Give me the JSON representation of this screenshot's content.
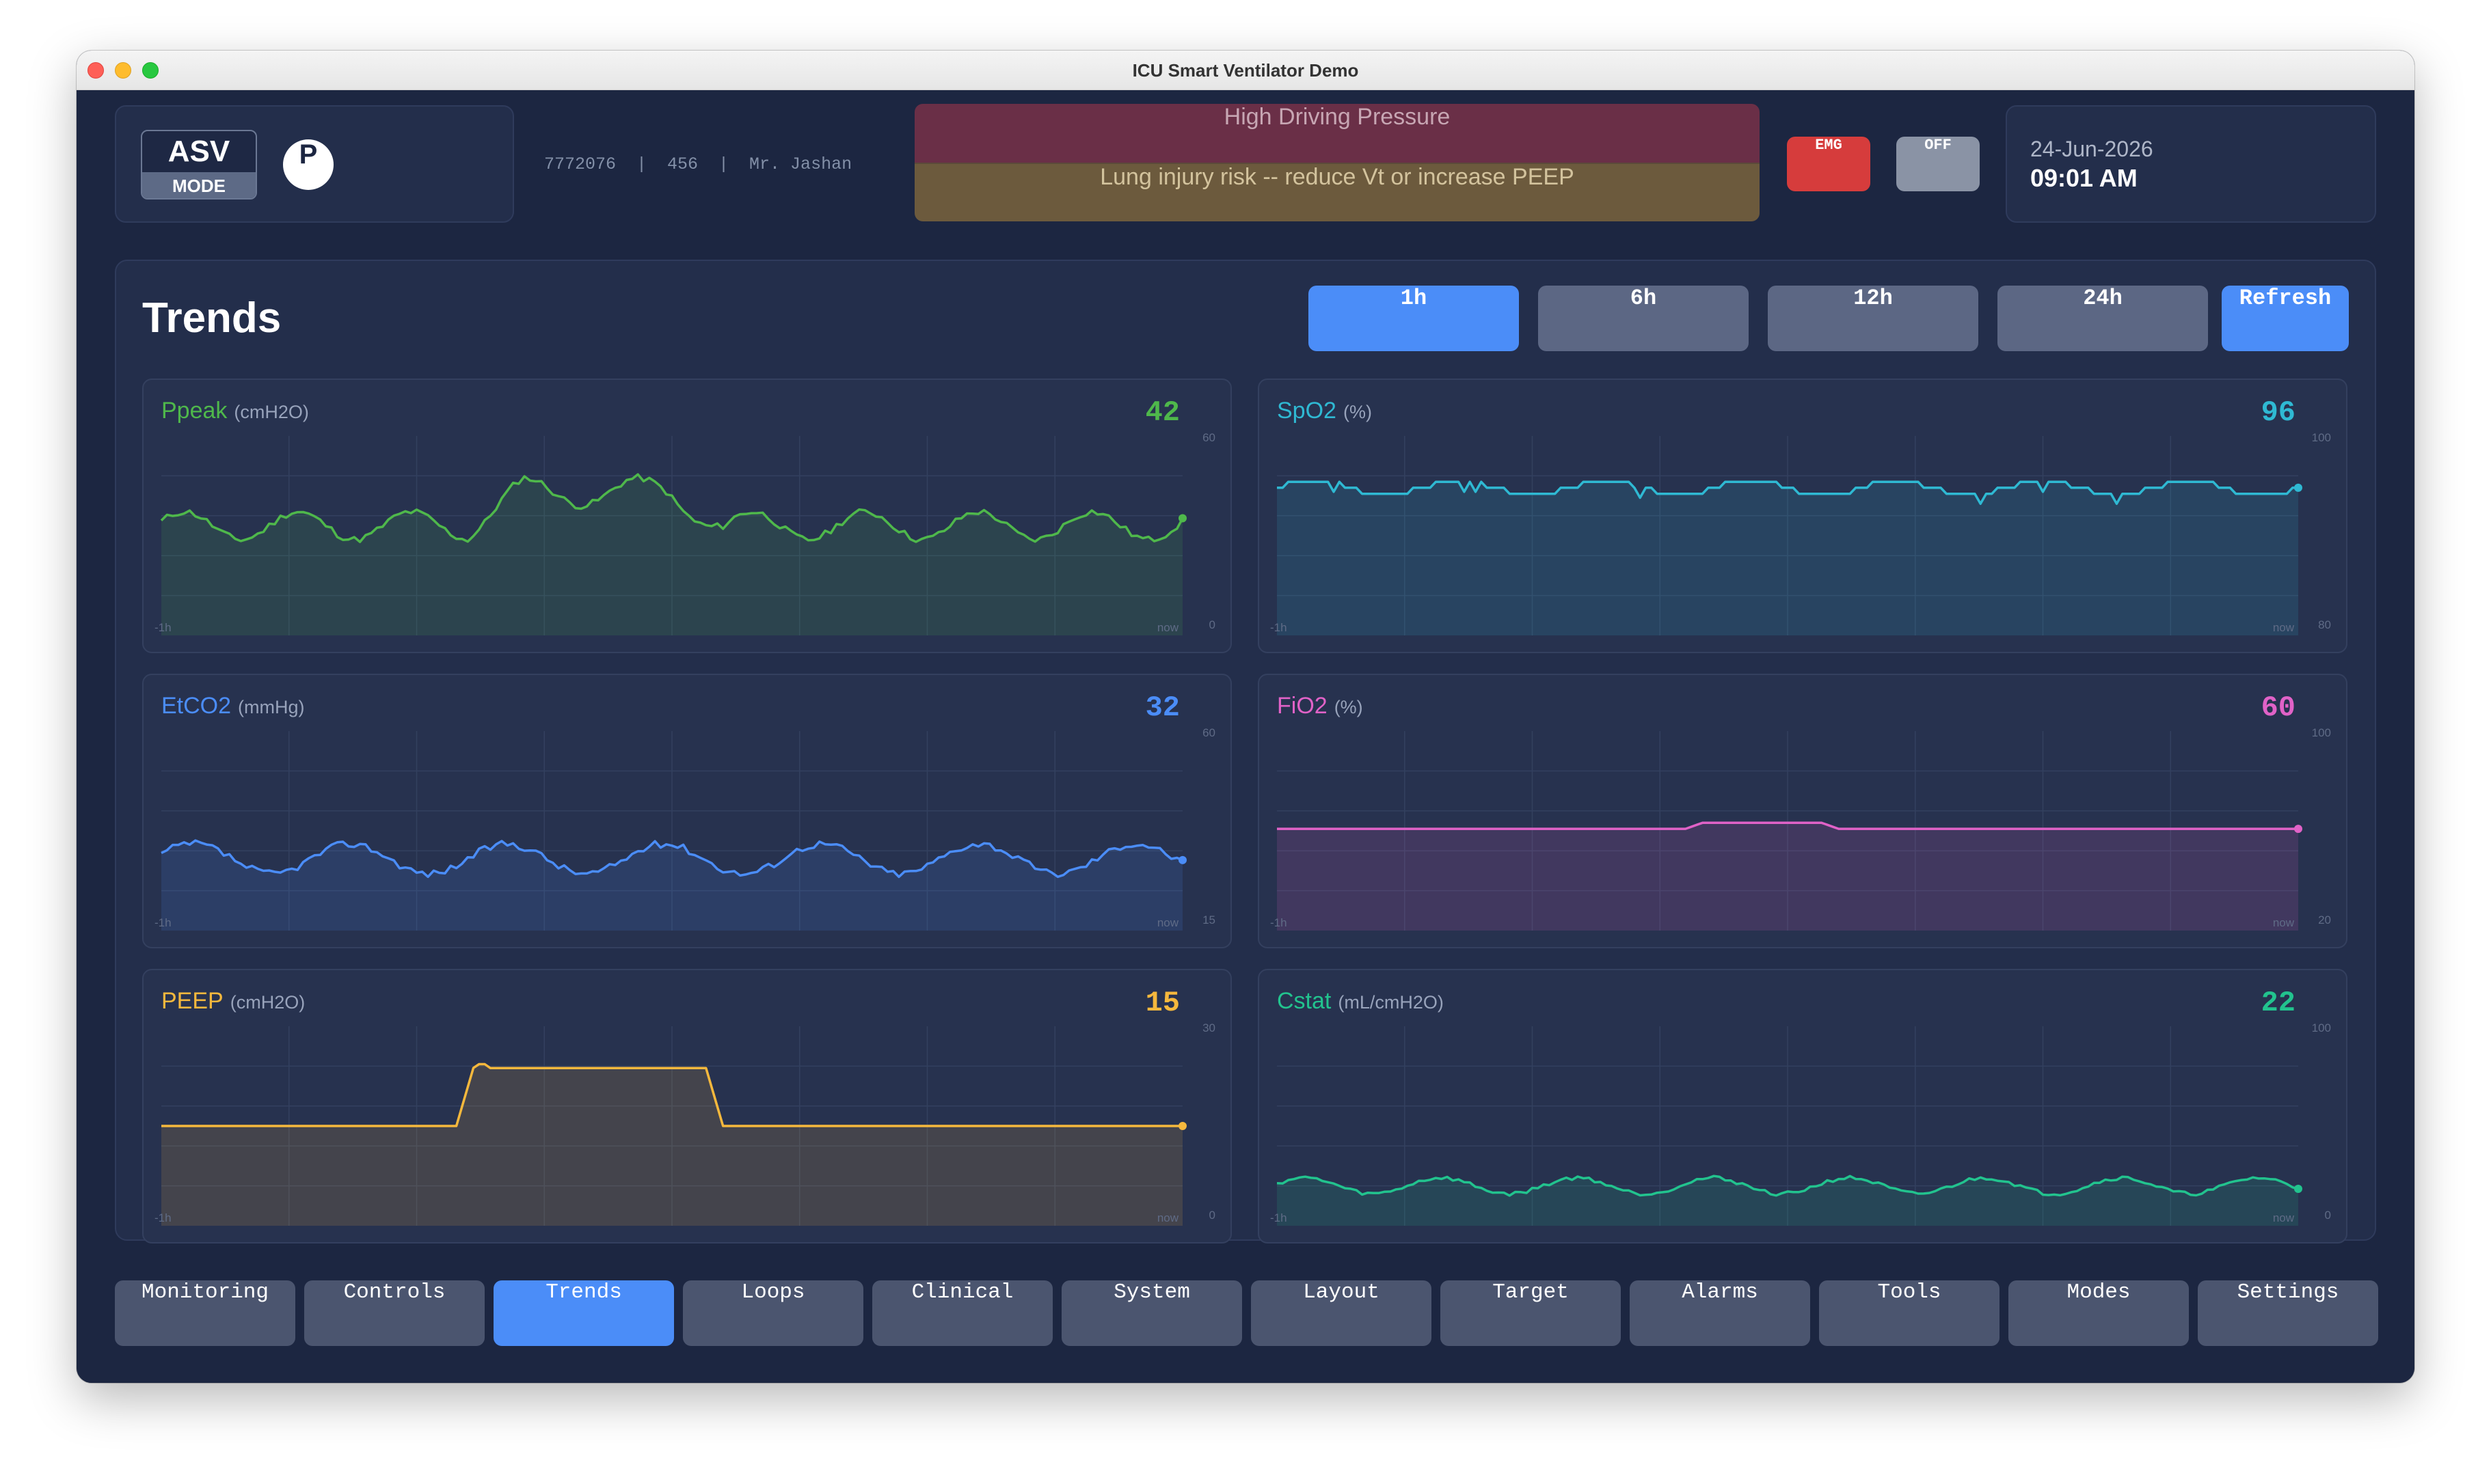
{
  "window": {
    "title": "ICU Smart Ventilator Demo"
  },
  "mode": {
    "name": "ASV",
    "label": "MODE",
    "badge": "P"
  },
  "patient": {
    "text": "7772076  |  456  |  Mr. Jashan"
  },
  "alarm": {
    "title": "High Driving Pressure",
    "message": "Lung injury risk -- reduce Vt or increase PEEP"
  },
  "buttons": {
    "emg": "EMG",
    "off": "OFF"
  },
  "datetime": {
    "date": "24-Jun-2026",
    "time": "09:01 AM"
  },
  "trends": {
    "title": "Trends",
    "ranges": [
      "1h",
      "6h",
      "12h",
      "24h"
    ],
    "active_range": "1h",
    "refresh_label": "Refresh"
  },
  "charts": [
    {
      "name": "Ppeak",
      "unit": "(cmH2O)",
      "value": "42",
      "color": "#4fb84b",
      "ymax": "60",
      "ymin": "0",
      "xstart": "-1h",
      "xend": "now"
    },
    {
      "name": "SpO2",
      "unit": "(%)",
      "value": "96",
      "color": "#2fb9d3",
      "ymax": "100",
      "ymin": "80",
      "xstart": "-1h",
      "xend": "now"
    },
    {
      "name": "EtCO2",
      "unit": "(mmHg)",
      "value": "32",
      "color": "#4b8df8",
      "ymax": "60",
      "ymin": "15",
      "xstart": "-1h",
      "xend": "now"
    },
    {
      "name": "FiO2",
      "unit": "(%)",
      "value": "60",
      "color": "#e062c7",
      "ymax": "100",
      "ymin": "20",
      "xstart": "-1h",
      "xend": "now"
    },
    {
      "name": "PEEP",
      "unit": "(cmH2O)",
      "value": "15",
      "color": "#f5b83d",
      "ymax": "30",
      "ymin": "0",
      "xstart": "-1h",
      "xend": "now"
    },
    {
      "name": "Cstat",
      "unit": "(mL/cmH2O)",
      "value": "22",
      "color": "#22c38e",
      "ymax": "100",
      "ymin": "0",
      "xstart": "-1h",
      "xend": "now"
    }
  ],
  "nav": {
    "items": [
      "Monitoring",
      "Controls",
      "Trends",
      "Loops",
      "Clinical",
      "System",
      "Layout",
      "Target",
      "Alarms",
      "Tools",
      "Modes",
      "Settings"
    ],
    "active": "Trends"
  }
}
